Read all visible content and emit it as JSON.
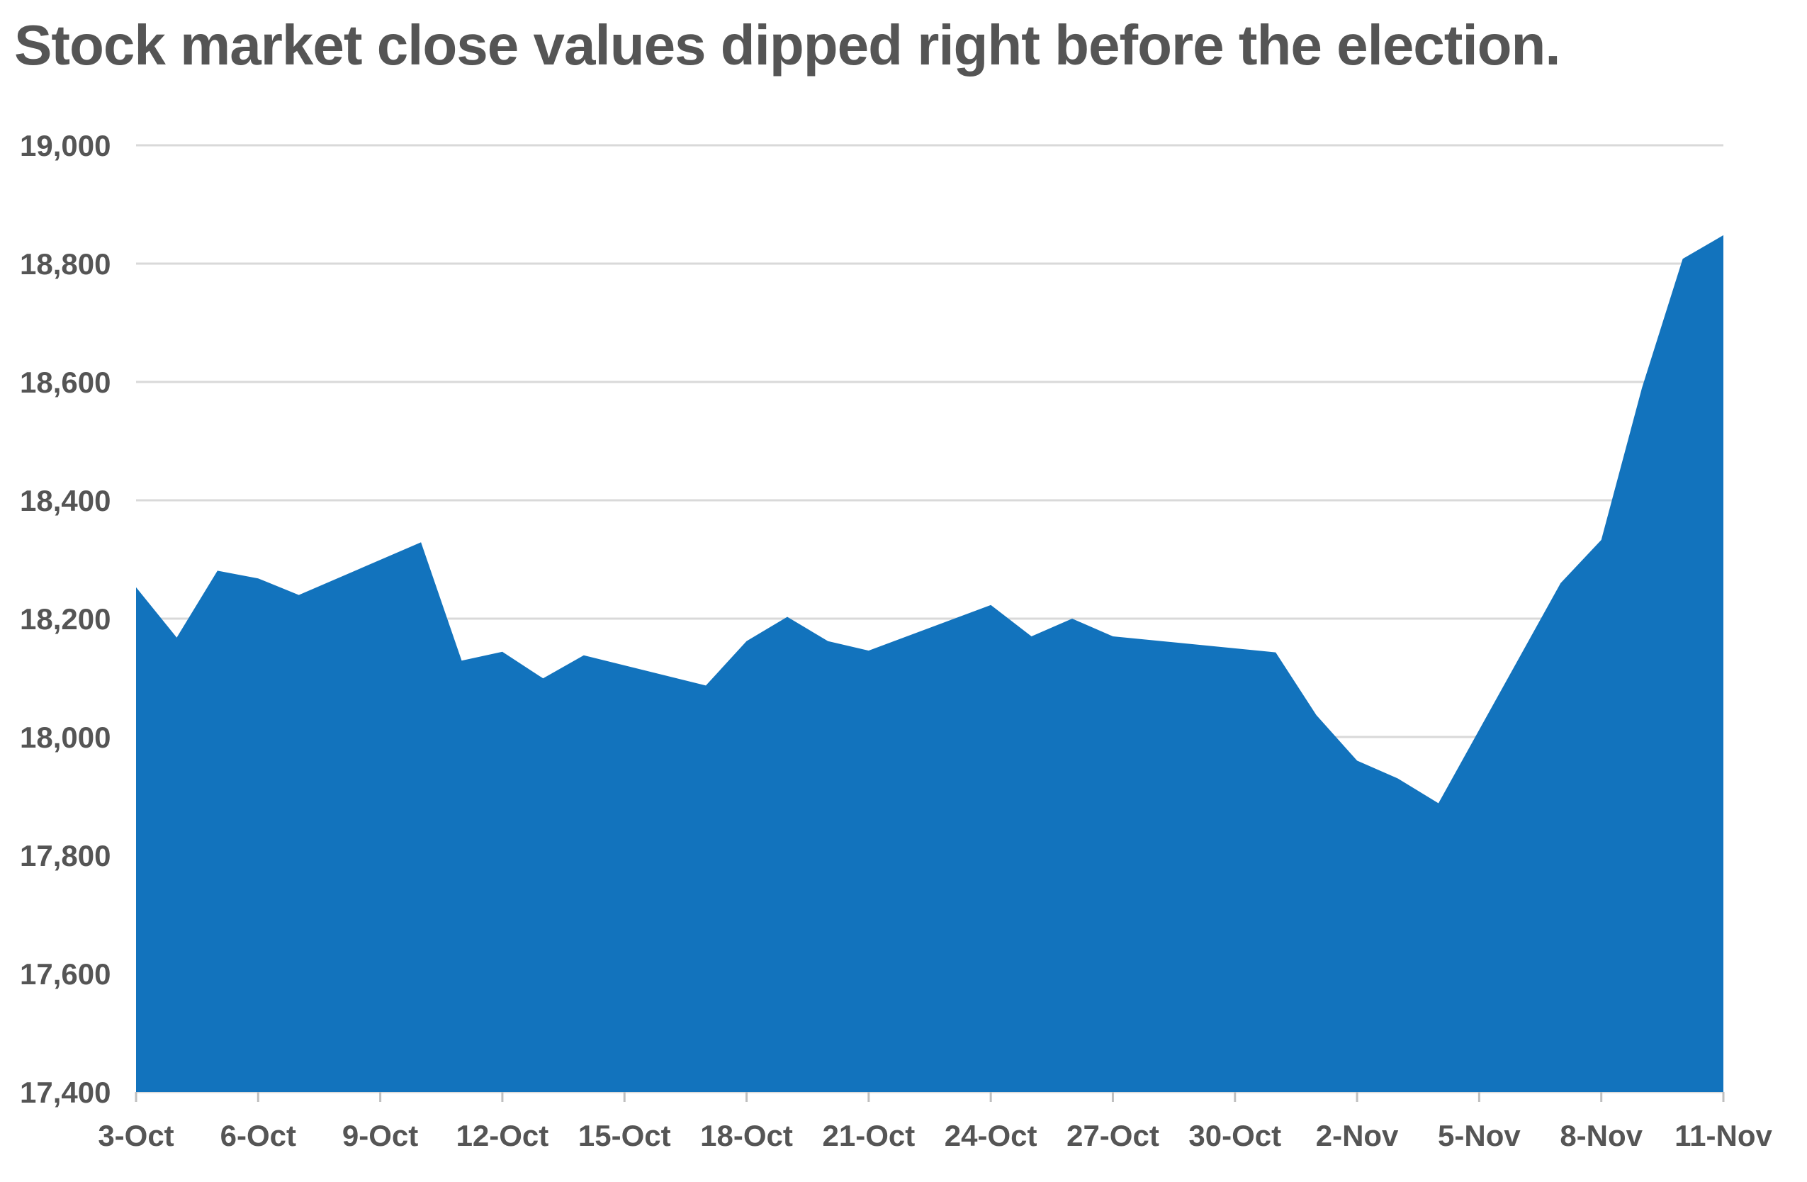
{
  "chart_data": {
    "type": "area",
    "title": "Stock market close values dipped right before the election.",
    "xlabel": "",
    "ylabel": "",
    "ylim": [
      17400,
      19000
    ],
    "y_ticks": [
      19000,
      18800,
      18600,
      18400,
      18200,
      18000,
      17800,
      17600,
      17400
    ],
    "y_tick_labels": [
      "19,000",
      "18,800",
      "18,600",
      "18,400",
      "18,200",
      "18,000",
      "17,800",
      "17,600",
      "17,400"
    ],
    "xlim": [
      "2016-10-03",
      "2016-11-11"
    ],
    "x_ticks": [
      "2016-10-03",
      "2016-10-06",
      "2016-10-09",
      "2016-10-12",
      "2016-10-15",
      "2016-10-18",
      "2016-10-21",
      "2016-10-24",
      "2016-10-27",
      "2016-10-30",
      "2016-11-02",
      "2016-11-05",
      "2016-11-08",
      "2016-11-11"
    ],
    "x_tick_labels": [
      "3-Oct",
      "6-Oct",
      "9-Oct",
      "12-Oct",
      "15-Oct",
      "18-Oct",
      "21-Oct",
      "24-Oct",
      "27-Oct",
      "30-Oct",
      "2-Nov",
      "5-Nov",
      "8-Nov",
      "11-Nov"
    ],
    "grid": true,
    "color": "#1273bd",
    "series": [
      {
        "x": [
          "2016-10-03",
          "2016-10-04",
          "2016-10-05",
          "2016-10-06",
          "2016-10-07",
          "2016-10-10",
          "2016-10-11",
          "2016-10-12",
          "2016-10-13",
          "2016-10-14",
          "2016-10-17",
          "2016-10-18",
          "2016-10-19",
          "2016-10-20",
          "2016-10-21",
          "2016-10-24",
          "2016-10-25",
          "2016-10-26",
          "2016-10-27",
          "2016-10-31",
          "2016-11-01",
          "2016-11-02",
          "2016-11-03",
          "2016-11-04",
          "2016-11-07",
          "2016-11-08",
          "2016-11-09",
          "2016-11-10",
          "2016-11-11"
        ],
        "values": [
          18253,
          18168,
          18281,
          18268,
          18240,
          18329,
          18129,
          18144,
          18099,
          18138,
          18087,
          18162,
          18203,
          18162,
          18146,
          18223,
          18170,
          18200,
          18170,
          18143,
          18037,
          17960,
          17930,
          17888,
          18260,
          18333,
          18590,
          18808,
          18848
        ]
      }
    ]
  }
}
